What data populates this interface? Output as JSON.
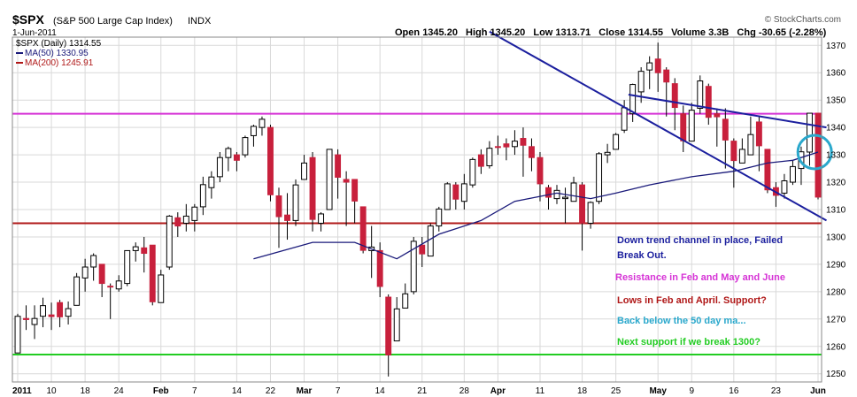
{
  "header": {
    "symbol": "$SPX",
    "name": "(S&P 500 Large Cap Index)",
    "exchange": "INDX",
    "date": "1-Jun-2011",
    "copyright": "© StockCharts.com",
    "open_label": "Open",
    "open": "1345.20",
    "high_label": "High",
    "high": "1345.20",
    "low_label": "Low",
    "low": "1313.71",
    "close_label": "Close",
    "close": "1314.55",
    "volume_label": "Volume",
    "volume": "3.3B",
    "chg_label": "Chg",
    "chg": "-30.65 (-2.28%)"
  },
  "legend": {
    "price": "$SPX (Daily) 1314.55",
    "ma50": "MA(50) 1330.95",
    "ma200": "MA(200) 1245.91"
  },
  "annotations": [
    {
      "text": "Down trend channel in place, Failed",
      "color": "#1b1f9e"
    },
    {
      "text": "Break Out.",
      "color": "#1b1f9e"
    },
    {
      "text": "Resistance in Feb and May and June",
      "color": "#d633d6"
    },
    {
      "text": "Lows in Feb and April. Support?",
      "color": "#b01818"
    },
    {
      "text": "Back below the 50 day ma...",
      "color": "#2aa8cc"
    },
    {
      "text": "Next support  if we break 1300?",
      "color": "#22cc22"
    }
  ],
  "colors": {
    "up": "#ffffff",
    "down": "#c8203c",
    "wick": "#000000",
    "ma50": "#1a1a7a",
    "resistance": "#d633d6",
    "support": "#b01818",
    "next_support": "#22cc22",
    "channel": "#1b1f9e",
    "circle": "#2aa8cc",
    "grid": "#d9d9d9"
  },
  "chart_data": {
    "type": "candlestick",
    "title": "$SPX (S&P 500 Large Cap Index) INDX",
    "y_axis_side": "right",
    "ylim": [
      1247,
      1373
    ],
    "y_ticks": [
      1250,
      1260,
      1270,
      1280,
      1290,
      1300,
      1310,
      1320,
      1330,
      1340,
      1350,
      1360,
      1370
    ],
    "x_tick_labels": [
      {
        "i": 0,
        "label": "2011",
        "bold": true
      },
      {
        "i": 4,
        "label": "10"
      },
      {
        "i": 8,
        "label": "18"
      },
      {
        "i": 12,
        "label": "24"
      },
      {
        "i": 17,
        "label": "Feb",
        "bold": true
      },
      {
        "i": 21,
        "label": "7"
      },
      {
        "i": 26,
        "label": "14"
      },
      {
        "i": 30,
        "label": "22"
      },
      {
        "i": 34,
        "label": "Mar",
        "bold": true
      },
      {
        "i": 38,
        "label": "7"
      },
      {
        "i": 43,
        "label": "14"
      },
      {
        "i": 48,
        "label": "21"
      },
      {
        "i": 53,
        "label": "28"
      },
      {
        "i": 57,
        "label": "Apr",
        "bold": true
      },
      {
        "i": 62,
        "label": "11"
      },
      {
        "i": 67,
        "label": "18"
      },
      {
        "i": 71,
        "label": "25"
      },
      {
        "i": 76,
        "label": "May",
        "bold": true
      },
      {
        "i": 80,
        "label": "9"
      },
      {
        "i": 85,
        "label": "16"
      },
      {
        "i": 90,
        "label": "23"
      },
      {
        "i": 95,
        "label": "Jun",
        "bold": true
      }
    ],
    "candles": [
      [
        1257.6,
        1271.0,
        1257.6,
        1271.9
      ],
      [
        1270.2,
        1269.8,
        1266.0,
        1275.0
      ],
      [
        1268.0,
        1270.2,
        1262.7,
        1275.0
      ],
      [
        1271.0,
        1274.9,
        1267.0,
        1277.8
      ],
      [
        1271.5,
        1270.9,
        1266.0,
        1276.0
      ],
      [
        1276.0,
        1270.8,
        1267.0,
        1277.0
      ],
      [
        1271.0,
        1273.8,
        1268.0,
        1276.4
      ],
      [
        1275.0,
        1285.4,
        1275.0,
        1286.8
      ],
      [
        1285.0,
        1289.0,
        1280.0,
        1292.0
      ],
      [
        1289.0,
        1293.2,
        1284.0,
        1294.0
      ],
      [
        1290.0,
        1283.0,
        1278.0,
        1290.0
      ],
      [
        1282.0,
        1281.9,
        1270.0,
        1283.0
      ],
      [
        1281.0,
        1283.9,
        1280.0,
        1286.0
      ],
      [
        1283.0,
        1295.0,
        1282.0,
        1295.0
      ],
      [
        1295.0,
        1296.4,
        1291.0,
        1298.0
      ],
      [
        1296.0,
        1294.0,
        1287.0,
        1300.0
      ],
      [
        1297.0,
        1276.3,
        1275.0,
        1297.0
      ],
      [
        1276.0,
        1286.1,
        1276.0,
        1288.0
      ],
      [
        1289.0,
        1307.6,
        1288.0,
        1308.0
      ],
      [
        1307.0,
        1304.0,
        1300.0,
        1309.0
      ],
      [
        1305.0,
        1307.6,
        1302.0,
        1312.0
      ],
      [
        1306.0,
        1310.9,
        1302.0,
        1312.0
      ],
      [
        1311.0,
        1319.1,
        1308.0,
        1322.0
      ],
      [
        1318.0,
        1321.9,
        1314.0,
        1324.0
      ],
      [
        1322.0,
        1329.0,
        1320.0,
        1331.0
      ],
      [
        1329.0,
        1332.3,
        1324.0,
        1333.0
      ],
      [
        1330.0,
        1328.0,
        1324.0,
        1331.0
      ],
      [
        1330.0,
        1336.3,
        1329.0,
        1337.0
      ],
      [
        1337.0,
        1340.4,
        1333.0,
        1341.0
      ],
      [
        1340.0,
        1343.0,
        1337.0,
        1344.0
      ],
      [
        1340.0,
        1315.4,
        1313.0,
        1341.0
      ],
      [
        1315.0,
        1307.4,
        1296.0,
        1318.0
      ],
      [
        1308.0,
        1306.0,
        1299.0,
        1316.0
      ],
      [
        1306.0,
        1319.0,
        1304.0,
        1321.0
      ],
      [
        1321.0,
        1327.0,
        1321.0,
        1330.0
      ],
      [
        1329.0,
        1306.4,
        1302.0,
        1331.0
      ],
      [
        1305.0,
        1308.4,
        1302.0,
        1309.0
      ],
      [
        1310.0,
        1332.0,
        1310.0,
        1332.0
      ],
      [
        1330.0,
        1321.8,
        1314.0,
        1332.0
      ],
      [
        1321.0,
        1320.0,
        1304.0,
        1324.0
      ],
      [
        1321.0,
        1313.1,
        1305.0,
        1321.0
      ],
      [
        1311.0,
        1295.1,
        1294.0,
        1311.0
      ],
      [
        1295.0,
        1296.3,
        1285.0,
        1304.0
      ],
      [
        1295.0,
        1281.9,
        1278.0,
        1298.0
      ],
      [
        1278.0,
        1256.9,
        1249.0,
        1279.0
      ],
      [
        1262.0,
        1273.7,
        1262.0,
        1278.0
      ],
      [
        1274.0,
        1279.2,
        1274.0,
        1283.0
      ],
      [
        1280.0,
        1298.4,
        1279.0,
        1300.0
      ],
      [
        1297.0,
        1293.8,
        1289.0,
        1300.0
      ],
      [
        1293.0,
        1304.0,
        1293.0,
        1305.0
      ],
      [
        1304.0,
        1310.2,
        1302.0,
        1311.0
      ],
      [
        1310.0,
        1319.4,
        1310.0,
        1320.0
      ],
      [
        1319.0,
        1313.8,
        1310.0,
        1320.0
      ],
      [
        1313.0,
        1319.4,
        1310.0,
        1323.0
      ],
      [
        1319.0,
        1328.3,
        1318.0,
        1329.0
      ],
      [
        1330.0,
        1325.8,
        1323.0,
        1332.0
      ],
      [
        1326.0,
        1332.4,
        1325.0,
        1335.0
      ],
      [
        1333.0,
        1332.9,
        1330.0,
        1337.0
      ],
      [
        1334.0,
        1332.9,
        1328.0,
        1336.0
      ],
      [
        1333.0,
        1335.0,
        1330.0,
        1339.0
      ],
      [
        1336.0,
        1333.5,
        1322.0,
        1340.0
      ],
      [
        1333.0,
        1329.0,
        1324.0,
        1336.0
      ],
      [
        1329.0,
        1319.4,
        1313.0,
        1331.0
      ],
      [
        1318.0,
        1314.5,
        1310.0,
        1319.0
      ],
      [
        1314.0,
        1317.0,
        1312.0,
        1319.0
      ],
      [
        1314.0,
        1314.5,
        1305.0,
        1318.0
      ],
      [
        1313.0,
        1319.7,
        1313.0,
        1322.0
      ],
      [
        1319.0,
        1305.1,
        1295.0,
        1320.0
      ],
      [
        1305.0,
        1312.6,
        1303.0,
        1313.0
      ],
      [
        1313.0,
        1330.4,
        1312.0,
        1331.0
      ],
      [
        1330.0,
        1330.9,
        1327.0,
        1334.0
      ],
      [
        1332.0,
        1337.4,
        1332.0,
        1338.0
      ],
      [
        1339.0,
        1347.2,
        1338.0,
        1350.0
      ],
      [
        1345.0,
        1355.7,
        1342.0,
        1356.0
      ],
      [
        1353.0,
        1360.5,
        1349.0,
        1362.0
      ],
      [
        1361.0,
        1363.6,
        1354.0,
        1366.0
      ],
      [
        1365.0,
        1360.0,
        1353.0,
        1371.0
      ],
      [
        1361.0,
        1356.6,
        1344.0,
        1362.0
      ],
      [
        1356.0,
        1347.3,
        1339.0,
        1358.0
      ],
      [
        1345.0,
        1335.1,
        1331.0,
        1348.0
      ],
      [
        1335.0,
        1346.3,
        1335.0,
        1349.0
      ],
      [
        1347.0,
        1357.0,
        1345.0,
        1359.0
      ],
      [
        1355.0,
        1343.7,
        1341.0,
        1356.0
      ],
      [
        1345.0,
        1343.9,
        1333.0,
        1347.0
      ],
      [
        1343.0,
        1335.4,
        1325.0,
        1347.0
      ],
      [
        1335.0,
        1327.9,
        1318.0,
        1336.0
      ],
      [
        1327.0,
        1332.0,
        1327.0,
        1336.0
      ],
      [
        1330.0,
        1337.4,
        1330.0,
        1344.0
      ],
      [
        1342.0,
        1333.3,
        1324.0,
        1344.0
      ],
      [
        1332.0,
        1317.2,
        1316.0,
        1332.0
      ],
      [
        1318.0,
        1315.2,
        1311.0,
        1320.0
      ],
      [
        1316.0,
        1320.5,
        1314.0,
        1323.0
      ],
      [
        1320.0,
        1325.7,
        1319.0,
        1328.0
      ],
      [
        1325.0,
        1331.1,
        1319.0,
        1333.0
      ],
      [
        1331.0,
        1345.2,
        1326.0,
        1345.0
      ],
      [
        1345.2,
        1314.55,
        1313.71,
        1345.2
      ]
    ],
    "series": [
      {
        "name": "MA(50) 1330.95",
        "type": "line",
        "points": [
          [
            28,
            1292
          ],
          [
            35,
            1298
          ],
          [
            40,
            1298
          ],
          [
            45,
            1292
          ],
          [
            50,
            1301
          ],
          [
            55,
            1306
          ],
          [
            59,
            1313
          ],
          [
            64,
            1316
          ],
          [
            68,
            1314
          ],
          [
            71,
            1316
          ],
          [
            75,
            1319
          ],
          [
            80,
            1322
          ],
          [
            85,
            1324
          ],
          [
            89,
            1327
          ],
          [
            92,
            1328
          ],
          [
            95,
            1331
          ]
        ]
      }
    ],
    "horizontal_lines": [
      {
        "value": 1345,
        "role": "resistance"
      },
      {
        "value": 1305,
        "role": "support"
      },
      {
        "value": 1257,
        "role": "next_support"
      }
    ],
    "trend_lines": [
      {
        "from": [
          56.0,
          1375.0
        ],
        "to": [
          96.0,
          1306.0
        ]
      },
      {
        "from": [
          72.5,
          1352.0
        ],
        "to": [
          96.0,
          1340.0
        ]
      }
    ],
    "markers": [
      {
        "type": "circle",
        "at": [
          94.6,
          1331
        ]
      }
    ]
  }
}
